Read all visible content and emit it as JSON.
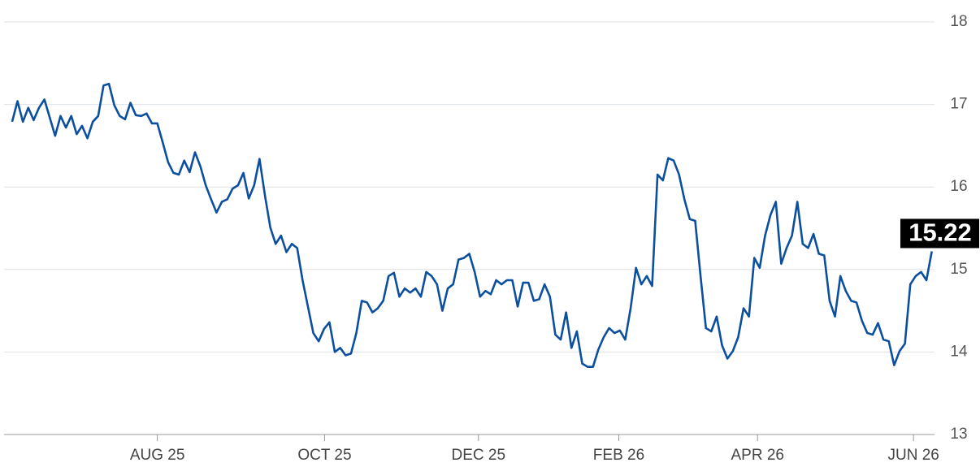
{
  "chart_data": {
    "type": "line",
    "color": "#0b4f9e",
    "grid": true,
    "values": [
      16.79,
      17.04,
      16.79,
      16.96,
      16.81,
      16.96,
      17.06,
      16.84,
      16.62,
      16.86,
      16.72,
      16.86,
      16.64,
      16.74,
      16.59,
      16.79,
      16.86,
      17.23,
      17.25,
      16.99,
      16.86,
      16.82,
      17.02,
      16.87,
      16.86,
      16.89,
      16.77,
      16.77,
      16.54,
      16.3,
      16.17,
      16.15,
      16.32,
      16.18,
      16.42,
      16.25,
      16.02,
      15.85,
      15.69,
      15.82,
      15.85,
      15.98,
      16.02,
      16.17,
      15.86,
      16.02,
      16.34,
      15.9,
      15.51,
      15.31,
      15.41,
      15.21,
      15.31,
      15.26,
      14.87,
      14.55,
      14.23,
      14.13,
      14.28,
      14.36,
      14.0,
      14.05,
      13.96,
      13.98,
      14.23,
      14.62,
      14.6,
      14.48,
      14.53,
      14.62,
      14.92,
      14.96,
      14.67,
      14.77,
      14.72,
      14.77,
      14.67,
      14.97,
      14.92,
      14.82,
      14.5,
      14.77,
      14.82,
      15.12,
      15.14,
      15.19,
      14.97,
      14.67,
      14.74,
      14.7,
      14.87,
      14.82,
      14.87,
      14.87,
      14.55,
      14.84,
      14.84,
      14.62,
      14.64,
      14.82,
      14.67,
      14.21,
      14.15,
      14.48,
      14.05,
      14.25,
      13.86,
      13.82,
      13.82,
      14.03,
      14.18,
      14.29,
      14.23,
      14.26,
      14.15,
      14.53,
      15.02,
      14.82,
      14.92,
      14.8,
      16.15,
      16.08,
      16.35,
      16.32,
      16.15,
      15.85,
      15.61,
      15.59,
      14.92,
      14.29,
      14.25,
      14.43,
      14.08,
      13.92,
      14.01,
      14.18,
      14.53,
      14.43,
      15.14,
      15.02,
      15.41,
      15.66,
      15.82,
      15.07,
      15.26,
      15.41,
      15.82,
      15.31,
      15.26,
      15.43,
      15.19,
      15.17,
      14.62,
      14.43,
      14.92,
      14.74,
      14.62,
      14.6,
      14.38,
      14.23,
      14.21,
      14.35,
      14.15,
      14.13,
      13.84,
      14.01,
      14.1,
      14.82,
      14.92,
      14.97,
      14.87,
      15.22
    ],
    "xlim": [
      -1.5,
      171.5
    ],
    "xticks": [
      {
        "value": 27,
        "label": "AUG 25"
      },
      {
        "value": 58.1,
        "label": "OCT 25"
      },
      {
        "value": 86.7,
        "label": "DEC 25"
      },
      {
        "value": 112.8,
        "label": "FEB 26"
      },
      {
        "value": 138.6,
        "label": "APR 26"
      },
      {
        "value": 167.6,
        "label": "JUN 26"
      }
    ],
    "ylim": [
      13,
      18
    ],
    "yticks": [
      13,
      14,
      15,
      16,
      17,
      18
    ]
  }
}
